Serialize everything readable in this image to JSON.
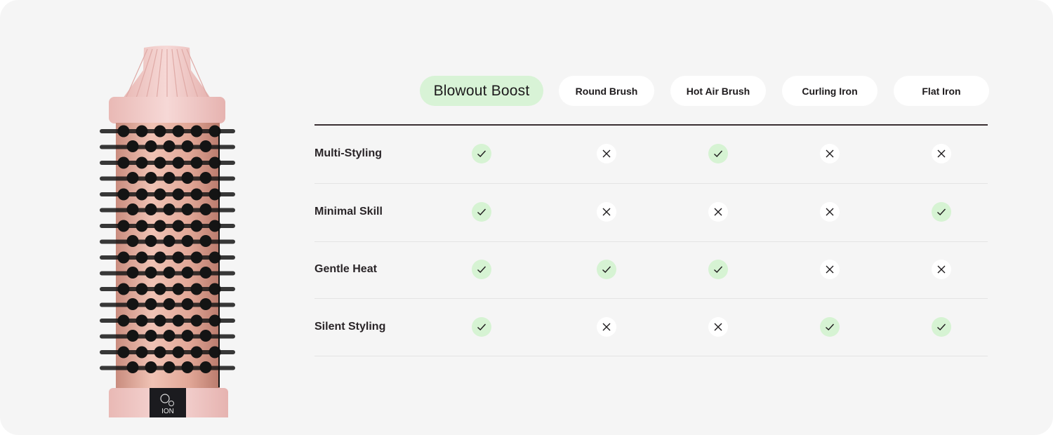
{
  "columns": [
    {
      "label": "Blowout Boost",
      "highlight": true
    },
    {
      "label": "Round Brush",
      "highlight": false
    },
    {
      "label": "Hot Air Brush",
      "highlight": false
    },
    {
      "label": "Curling Iron",
      "highlight": false
    },
    {
      "label": "Flat Iron",
      "highlight": false
    }
  ],
  "rows": [
    {
      "label": "Multi-Styling",
      "values": [
        true,
        false,
        true,
        false,
        false
      ]
    },
    {
      "label": "Minimal Skill",
      "values": [
        true,
        false,
        false,
        false,
        true
      ]
    },
    {
      "label": "Gentle Heat",
      "values": [
        true,
        true,
        true,
        false,
        false
      ]
    },
    {
      "label": "Silent Styling",
      "values": [
        true,
        false,
        false,
        true,
        true
      ]
    }
  ],
  "product": {
    "display_label": "ION"
  },
  "icons": {
    "yes": "check-icon",
    "no": "x-icon"
  },
  "colors": {
    "background": "#f5f5f5",
    "highlight": "#d8f3d6",
    "check_bg": "#d6f3d3",
    "product_pink": "#f2d3d3",
    "barrel": "#dfa99a"
  }
}
